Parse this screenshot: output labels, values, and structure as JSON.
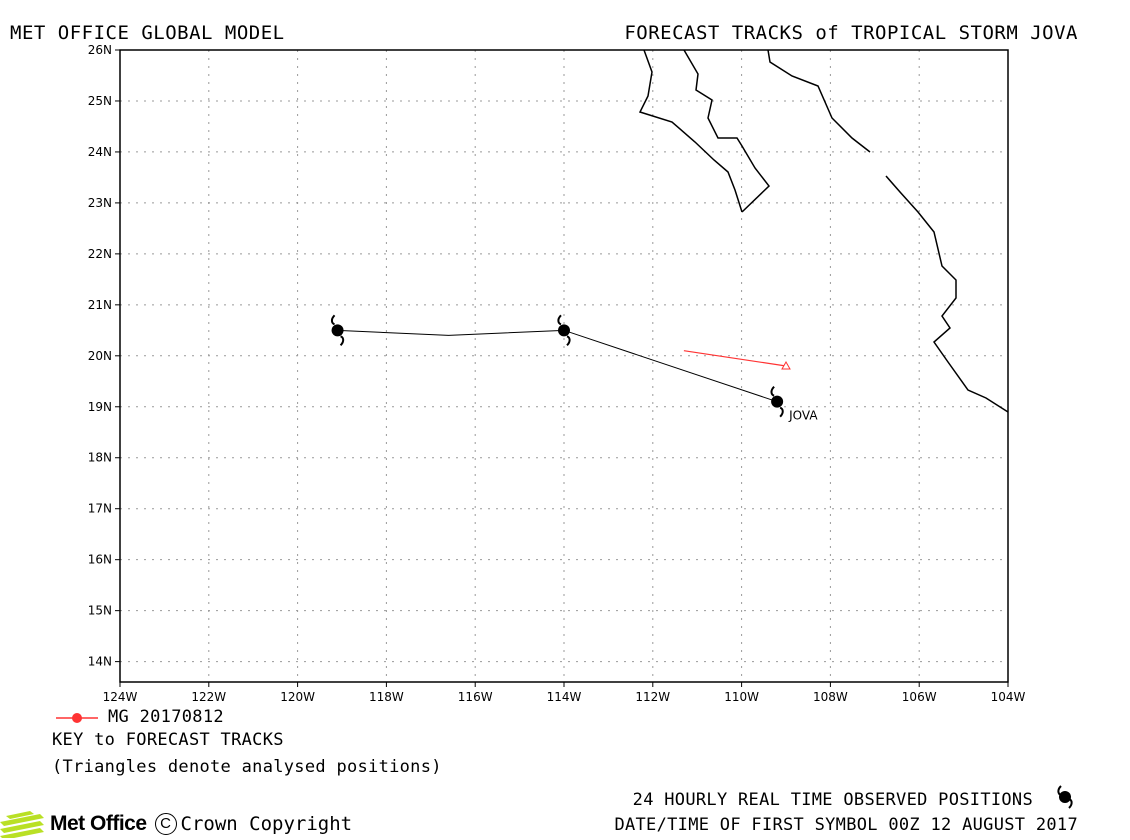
{
  "header": {
    "left_title": "MET OFFICE GLOBAL MODEL",
    "right_title": "FORECAST TRACKS of TROPICAL STORM JOVA"
  },
  "map": {
    "lon_labels": [
      "124W",
      "122W",
      "120W",
      "118W",
      "116W",
      "114W",
      "112W",
      "110W",
      "108W",
      "106W",
      "104W"
    ],
    "lat_labels": [
      "26N",
      "25N",
      "24N",
      "23N",
      "22N",
      "21N",
      "20N",
      "19N",
      "18N",
      "17N",
      "16N",
      "15N",
      "14N"
    ],
    "lon_range": [
      -124,
      -104
    ],
    "lat_range": [
      13.6,
      26
    ],
    "gridlines": true,
    "coastline_color": "#000000",
    "storm_label": "JOVA",
    "observed_track": [
      {
        "lon": -109.2,
        "lat": 19.1
      },
      {
        "lon": -114.0,
        "lat": 20.5
      },
      {
        "lon": -119.1,
        "lat": 20.5
      }
    ],
    "observed_track_midpoint": {
      "lon": -116.6,
      "lat": 20.4
    },
    "forecast_track": {
      "name": "MG 20170812",
      "color": "#ff3333",
      "points": [
        {
          "lon": -109.0,
          "lat": 19.8
        },
        {
          "lon": -111.3,
          "lat": 20.1
        }
      ]
    }
  },
  "key": {
    "model_run": "MG 20170812",
    "title": "KEY to FORECAST TRACKS",
    "note": "(Triangles denote analysed positions)"
  },
  "footer": {
    "observed_note": "24 HOURLY REAL TIME OBSERVED POSITIONS",
    "date_note": "DATE/TIME OF FIRST SYMBOL 00Z 12 AUGUST 2017",
    "logo_text": "Met Office",
    "copyright_symbol": "C",
    "copyright_text": "Crown Copyright"
  }
}
